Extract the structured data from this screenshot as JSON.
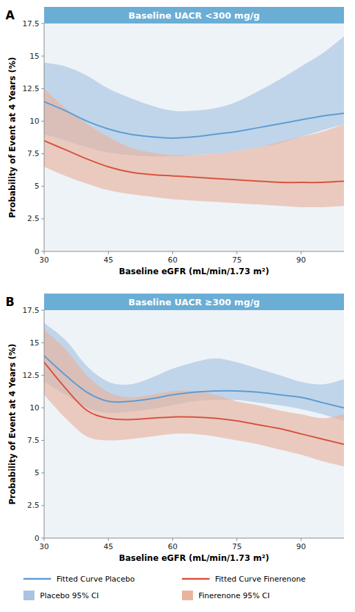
{
  "chart_data": [
    {
      "type": "line",
      "panel_label": "A",
      "title": "Baseline UACR <300 mg/g",
      "x_label": "Baseline eGFR (mL/min/1.73 m²)",
      "y_label": "Probability of Event at 4 Years (%)",
      "x": [
        30,
        35,
        40,
        45,
        50,
        55,
        60,
        65,
        70,
        75,
        80,
        85,
        90,
        95,
        100
      ],
      "xlim": [
        30,
        100
      ],
      "xticks": [
        30,
        45,
        60,
        75,
        90
      ],
      "ylim": [
        0,
        17.5
      ],
      "yticks": [
        0,
        2.5,
        5,
        7.5,
        10,
        12.5,
        15,
        17.5
      ],
      "grid": false,
      "series": [
        {
          "type": "line",
          "color": "#5b9bd5",
          "values": [
            11.5,
            10.8,
            10.0,
            9.4,
            9.0,
            8.8,
            8.7,
            8.8,
            9.0,
            9.2,
            9.5,
            9.8,
            10.1,
            10.4,
            10.6
          ]
        },
        {
          "type": "line",
          "color": "#d94f3d",
          "values": [
            8.5,
            7.8,
            7.1,
            6.5,
            6.1,
            5.9,
            5.8,
            5.7,
            5.6,
            5.5,
            5.4,
            5.3,
            5.3,
            5.3,
            5.4
          ]
        },
        {
          "type": "band",
          "color": "#a8c4e0",
          "lower": [
            9.0,
            8.5,
            8.0,
            7.6,
            7.4,
            7.3,
            7.3,
            7.4,
            7.5,
            7.7,
            8.0,
            8.3,
            8.8,
            9.3,
            9.8
          ],
          "upper": [
            14.5,
            14.2,
            13.5,
            12.5,
            11.8,
            11.2,
            10.8,
            10.8,
            11.0,
            11.5,
            12.3,
            13.2,
            14.2,
            15.2,
            16.5
          ]
        },
        {
          "type": "band",
          "color": "#e8b4a0",
          "lower": [
            6.5,
            5.8,
            5.2,
            4.7,
            4.4,
            4.2,
            4.0,
            3.9,
            3.8,
            3.7,
            3.6,
            3.5,
            3.4,
            3.4,
            3.5
          ],
          "upper": [
            12.5,
            11.0,
            9.8,
            8.8,
            8.0,
            7.6,
            7.4,
            7.4,
            7.5,
            7.7,
            8.0,
            8.4,
            8.8,
            9.2,
            9.8
          ]
        }
      ]
    },
    {
      "type": "line",
      "panel_label": "B",
      "title": "Baseline UACR ≥300 mg/g",
      "x_label": "Baseline eGFR (mL/min/1.73 m²)",
      "y_label": "Probability of Event at 4 Years (%)",
      "x": [
        30,
        35,
        40,
        45,
        50,
        55,
        60,
        65,
        70,
        75,
        80,
        85,
        90,
        95,
        100
      ],
      "xlim": [
        30,
        100
      ],
      "xticks": [
        30,
        45,
        60,
        75,
        90
      ],
      "ylim": [
        0,
        17.5
      ],
      "yticks": [
        0,
        2.5,
        5,
        7.5,
        10,
        12.5,
        15,
        17.5
      ],
      "grid": false,
      "legend": "bottom",
      "series": [
        {
          "name": "Fitted Curve Placebo",
          "type": "line",
          "color": "#5b9bd5",
          "values": [
            14.0,
            12.5,
            11.2,
            10.5,
            10.5,
            10.7,
            11.0,
            11.2,
            11.3,
            11.3,
            11.2,
            11.0,
            10.8,
            10.4,
            10.0
          ]
        },
        {
          "name": "Fitted Curve Finerenone",
          "type": "line",
          "color": "#d94f3d",
          "values": [
            13.5,
            11.5,
            9.8,
            9.2,
            9.1,
            9.2,
            9.3,
            9.3,
            9.2,
            9.0,
            8.7,
            8.4,
            8.0,
            7.6,
            7.2
          ]
        },
        {
          "name": "Placebo 95% CI",
          "type": "band",
          "color": "#a8c4e0",
          "lower": [
            12.0,
            11.0,
            10.0,
            9.6,
            9.7,
            9.9,
            10.2,
            10.5,
            10.6,
            10.6,
            10.4,
            10.2,
            9.9,
            9.5,
            9.0
          ],
          "upper": [
            16.5,
            15.2,
            13.2,
            12.0,
            11.8,
            12.3,
            13.0,
            13.5,
            13.8,
            13.5,
            13.0,
            12.5,
            12.0,
            11.8,
            12.2
          ]
        },
        {
          "name": "Finerenone 95% CI",
          "type": "band",
          "color": "#e8b4a0",
          "lower": [
            11.0,
            9.2,
            7.8,
            7.5,
            7.6,
            7.8,
            8.0,
            8.0,
            7.8,
            7.5,
            7.2,
            6.8,
            6.4,
            5.9,
            5.5
          ],
          "upper": [
            16.0,
            14.5,
            12.5,
            11.2,
            10.8,
            11.0,
            11.3,
            11.3,
            11.0,
            10.5,
            10.2,
            9.8,
            9.5,
            9.2,
            9.5
          ]
        }
      ]
    }
  ]
}
